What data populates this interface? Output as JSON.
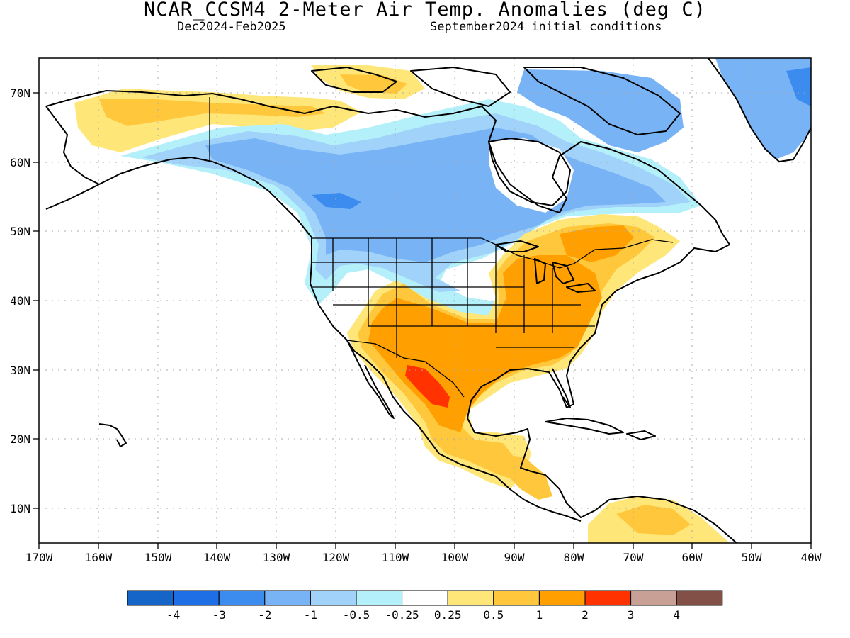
{
  "title": "NCAR_CCSM4 2-Meter Air Temp. Anomalies (deg C)",
  "subtitle_left": "Dec2024-Feb2025",
  "subtitle_right": "September2024 initial conditions",
  "lat_labels": [
    "70N",
    "60N",
    "50N",
    "40N",
    "30N",
    "20N",
    "10N"
  ],
  "lon_labels": [
    "170W",
    "160W",
    "150W",
    "140W",
    "130W",
    "120W",
    "110W",
    "100W",
    "90W",
    "80W",
    "70W",
    "60W",
    "50W",
    "40W"
  ],
  "colorbar": {
    "colors": [
      "#1565c8",
      "#1e6ee6",
      "#3c8cf0",
      "#78b4f5",
      "#a0d2fa",
      "#b4f0fa",
      "#ffffff",
      "#ffe678",
      "#ffc83c",
      "#ffa000",
      "#ff3200",
      "#c8a096",
      "#825046"
    ],
    "labels": [
      "-4",
      "-3",
      "-2",
      "-1",
      "-0.5",
      "-0.25",
      "0.25",
      "0.5",
      "1",
      "2",
      "3",
      "4"
    ]
  }
}
